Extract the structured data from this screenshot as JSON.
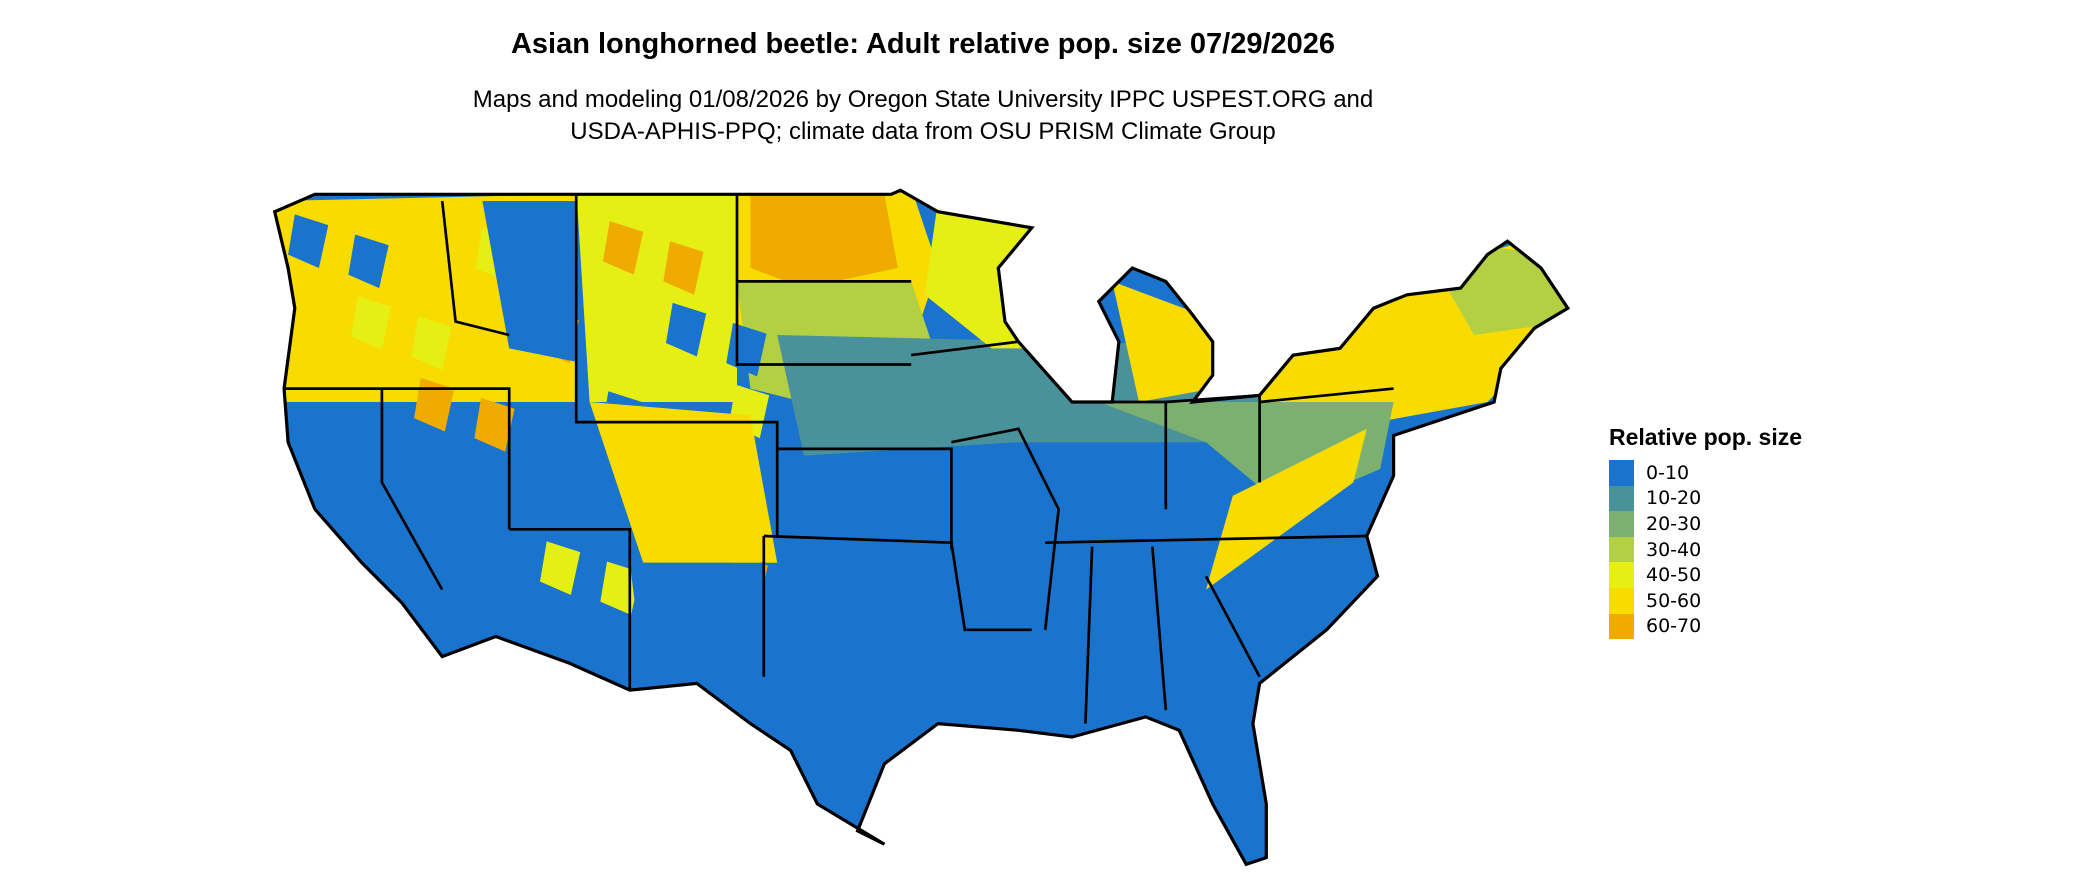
{
  "title": "Asian longhorned beetle: Adult relative pop. size 07/29/2026",
  "subtitle_lines": [
    "Maps and modeling 01/08/2026 by Oregon State University IPPC USPEST.ORG and",
    "USDA-APHIS-PPQ; climate data from OSU PRISM Climate Group"
  ],
  "chart_data": {
    "type": "heatmap",
    "title": "Asian longhorned beetle: Adult relative pop. size 07/29/2026",
    "region": "Contiguous United States",
    "legend": {
      "title": "Relative pop. size",
      "placement": "right",
      "entries": [
        {
          "label": "0-10",
          "color": "#1a73cc"
        },
        {
          "label": "10-20",
          "color": "#4a929b"
        },
        {
          "label": "20-30",
          "color": "#7cb070"
        },
        {
          "label": "30-40",
          "color": "#b3d044"
        },
        {
          "label": "40-50",
          "color": "#e6ef14"
        },
        {
          "label": "50-60",
          "color": "#f8dc00"
        },
        {
          "label": "60-70",
          "color": "#f0ab00"
        }
      ]
    }
  }
}
